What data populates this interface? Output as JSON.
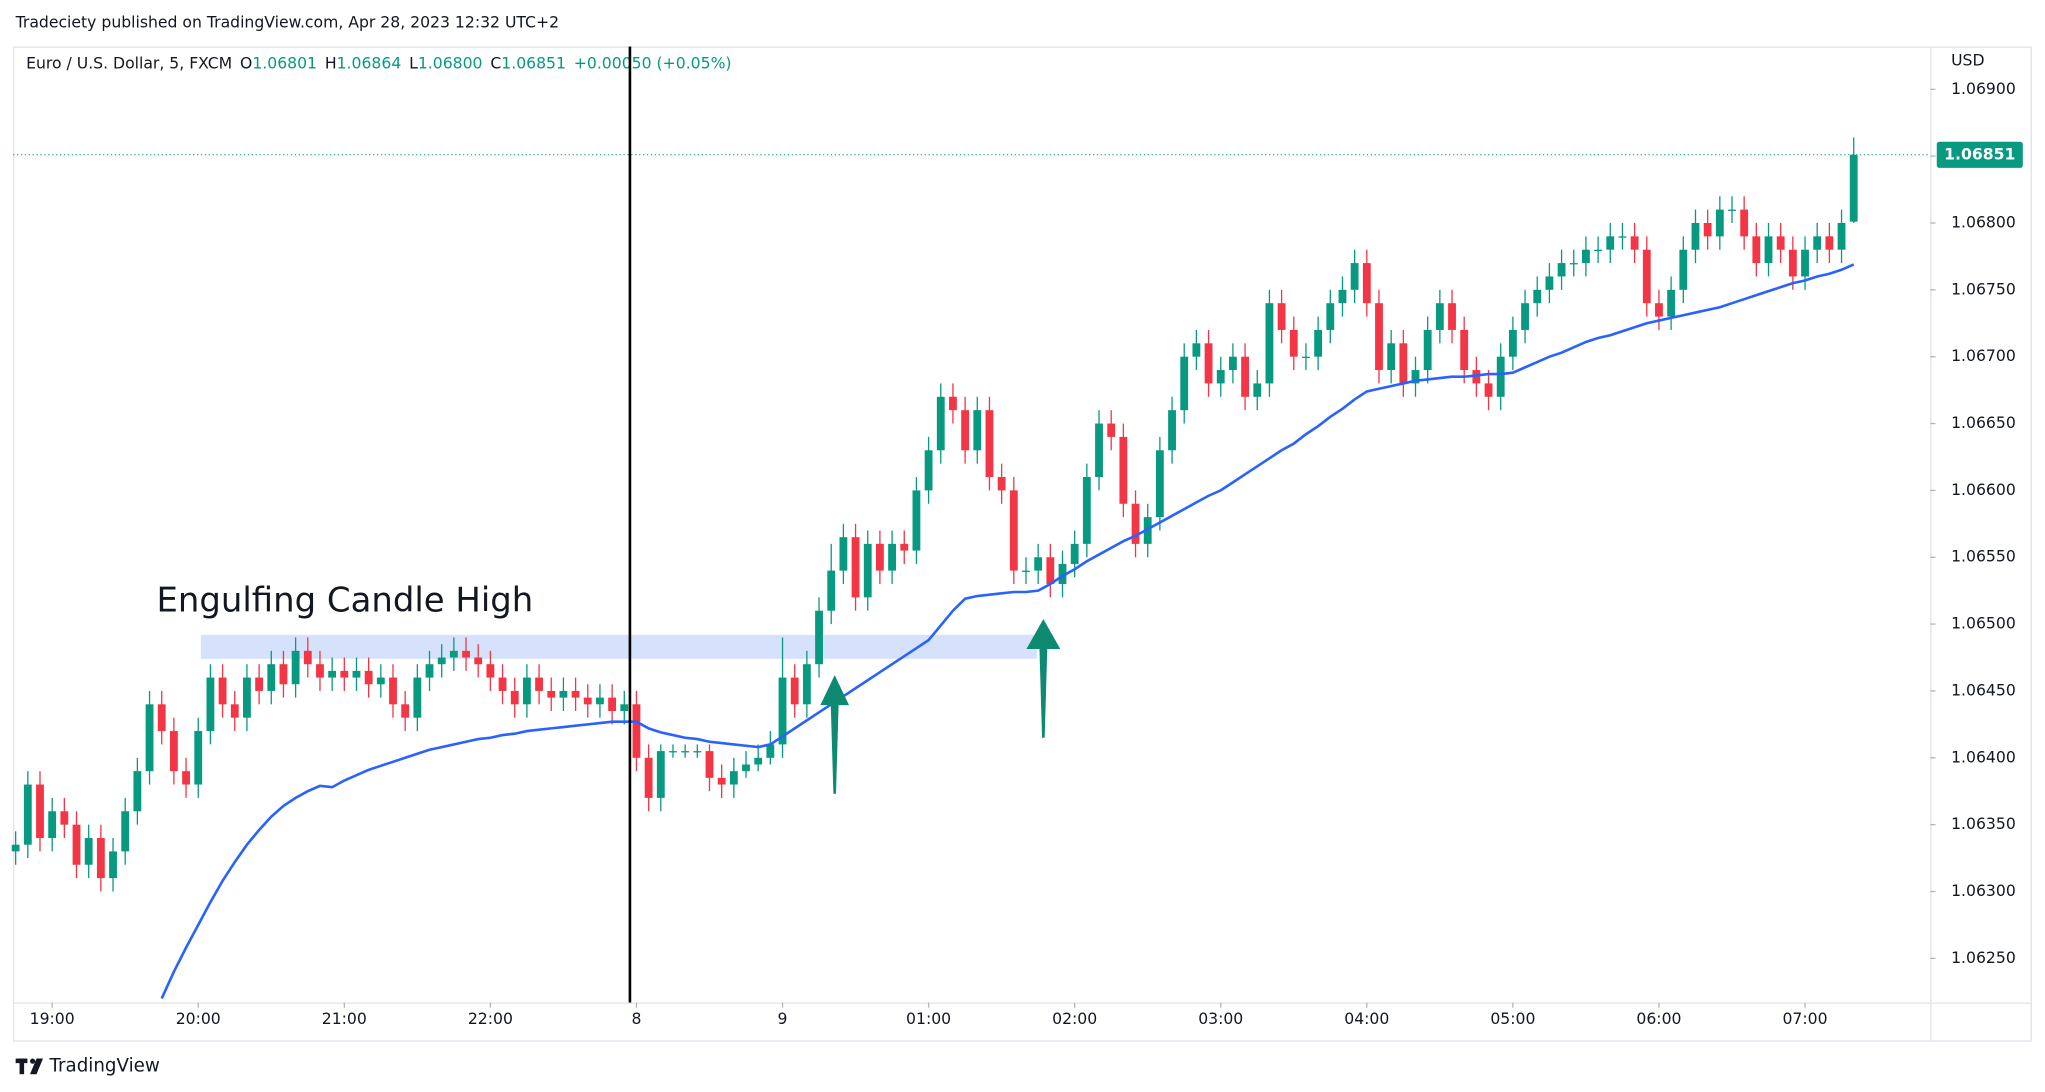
{
  "header": {
    "publisher": "Tradeciety published on TradingView.com, Apr 28, 2023 12:32 UTC+2",
    "symbol": "Euro / U.S. Dollar, 5, FXCM",
    "ohlc": [
      {
        "key": "O",
        "value": "1.06801"
      },
      {
        "key": "H",
        "value": "1.06864"
      },
      {
        "key": "L",
        "value": "1.06800"
      },
      {
        "key": "C",
        "value": "1.06851"
      }
    ],
    "change": "+0.00050 (+0.05%)"
  },
  "footer": {
    "brand": "TradingView"
  },
  "chart_data": {
    "type": "candlestick",
    "currency": "USD",
    "annotation": "Engulfing Candle High",
    "zone": [
      1.06474,
      1.06492
    ],
    "up_color": "#089981",
    "down_color": "#f23645",
    "ma_color": "#2962ff",
    "ylim": [
      1.06217,
      1.06932
    ],
    "yticks": [
      {
        "value": 1.0625,
        "label": "1.06250"
      },
      {
        "value": 1.063,
        "label": "1.06300"
      },
      {
        "value": 1.0635,
        "label": "1.06350"
      },
      {
        "value": 1.064,
        "label": "1.06400"
      },
      {
        "value": 1.0645,
        "label": "1.06450"
      },
      {
        "value": 1.065,
        "label": "1.06500"
      },
      {
        "value": 1.0655,
        "label": "1.06550"
      },
      {
        "value": 1.066,
        "label": "1.06600"
      },
      {
        "value": 1.0665,
        "label": "1.06650"
      },
      {
        "value": 1.067,
        "label": "1.06700"
      },
      {
        "value": 1.0675,
        "label": "1.06750"
      },
      {
        "value": 1.068,
        "label": "1.06800"
      },
      {
        "value": 1.0685,
        "label": "1.06850"
      },
      {
        "value": 1.069,
        "label": "1.06900"
      }
    ],
    "categories": [
      null,
      null,
      null,
      "19:00",
      null,
      null,
      null,
      null,
      null,
      null,
      null,
      null,
      null,
      null,
      null,
      "20:00",
      null,
      null,
      null,
      null,
      null,
      null,
      null,
      null,
      null,
      null,
      null,
      "21:00",
      null,
      null,
      null,
      null,
      null,
      null,
      null,
      null,
      null,
      null,
      null,
      "22:00",
      null,
      null,
      null,
      null,
      null,
      null,
      null,
      null,
      null,
      null,
      null,
      "8",
      null,
      null,
      null,
      null,
      null,
      null,
      null,
      null,
      null,
      null,
      null,
      "9",
      null,
      null,
      null,
      null,
      null,
      null,
      null,
      null,
      null,
      null,
      null,
      "01:00",
      null,
      null,
      null,
      null,
      null,
      null,
      null,
      null,
      null,
      null,
      null,
      "02:00",
      null,
      null,
      null,
      null,
      null,
      null,
      null,
      null,
      null,
      null,
      null,
      "03:00",
      null,
      null,
      null,
      null,
      null,
      null,
      null,
      null,
      null,
      null,
      null,
      "04:00",
      null,
      null,
      null,
      null,
      null,
      null,
      null,
      null,
      null,
      null,
      null,
      "05:00",
      null,
      null,
      null,
      null,
      null,
      null,
      null,
      null,
      null,
      null,
      null,
      "06:00",
      null,
      null,
      null,
      null,
      null,
      null,
      null,
      null,
      null,
      null,
      null,
      "07:00",
      null,
      null,
      null,
      null
    ],
    "candles": [
      [
        1.0633,
        1.06345,
        1.0632,
        1.06335
      ],
      [
        1.06335,
        1.0639,
        1.06325,
        1.0638
      ],
      [
        1.0638,
        1.0639,
        1.0633,
        1.0634
      ],
      [
        1.0634,
        1.0637,
        1.0633,
        1.0636
      ],
      [
        1.0636,
        1.0637,
        1.0634,
        1.0635
      ],
      [
        1.0635,
        1.0636,
        1.0631,
        1.0632
      ],
      [
        1.0632,
        1.0635,
        1.0631,
        1.0634
      ],
      [
        1.0634,
        1.0635,
        1.063,
        1.0631
      ],
      [
        1.0631,
        1.0634,
        1.063,
        1.0633
      ],
      [
        1.0633,
        1.0637,
        1.0632,
        1.0636
      ],
      [
        1.0636,
        1.064,
        1.0635,
        1.0639
      ],
      [
        1.0639,
        1.0645,
        1.0638,
        1.0644
      ],
      [
        1.0644,
        1.0645,
        1.0641,
        1.0642
      ],
      [
        1.0642,
        1.0643,
        1.0638,
        1.0639
      ],
      [
        1.0639,
        1.064,
        1.0637,
        1.0638
      ],
      [
        1.0638,
        1.0643,
        1.0637,
        1.0642
      ],
      [
        1.0642,
        1.0647,
        1.0641,
        1.0646
      ],
      [
        1.0646,
        1.0647,
        1.0643,
        1.0644
      ],
      [
        1.0644,
        1.0645,
        1.0642,
        1.0643
      ],
      [
        1.0643,
        1.0647,
        1.0642,
        1.0646
      ],
      [
        1.0646,
        1.0647,
        1.0644,
        1.0645
      ],
      [
        1.0645,
        1.0648,
        1.0644,
        1.0647
      ],
      [
        1.0647,
        1.0648,
        1.06445,
        1.06455
      ],
      [
        1.06455,
        1.0649,
        1.06445,
        1.0648
      ],
      [
        1.0648,
        1.0649,
        1.0646,
        1.0647
      ],
      [
        1.0647,
        1.0648,
        1.0645,
        1.0646
      ],
      [
        1.0646,
        1.06475,
        1.0645,
        1.06465
      ],
      [
        1.06465,
        1.06475,
        1.0645,
        1.0646
      ],
      [
        1.0646,
        1.06475,
        1.0645,
        1.06465
      ],
      [
        1.06465,
        1.06475,
        1.06445,
        1.06455
      ],
      [
        1.06455,
        1.0647,
        1.06445,
        1.0646
      ],
      [
        1.0646,
        1.0647,
        1.0643,
        1.0644
      ],
      [
        1.0644,
        1.0645,
        1.0642,
        1.0643
      ],
      [
        1.0643,
        1.0647,
        1.0642,
        1.0646
      ],
      [
        1.0646,
        1.0648,
        1.0645,
        1.0647
      ],
      [
        1.0647,
        1.06485,
        1.0646,
        1.06475
      ],
      [
        1.06475,
        1.0649,
        1.06465,
        1.0648
      ],
      [
        1.0648,
        1.0649,
        1.06465,
        1.06475
      ],
      [
        1.06475,
        1.06485,
        1.0646,
        1.0647
      ],
      [
        1.0647,
        1.0648,
        1.0645,
        1.0646
      ],
      [
        1.0646,
        1.0647,
        1.0644,
        1.0645
      ],
      [
        1.0645,
        1.0646,
        1.0643,
        1.0644
      ],
      [
        1.0644,
        1.0647,
        1.0643,
        1.0646
      ],
      [
        1.0646,
        1.0647,
        1.0644,
        1.0645
      ],
      [
        1.0645,
        1.0646,
        1.06435,
        1.06445
      ],
      [
        1.06445,
        1.0646,
        1.06435,
        1.0645
      ],
      [
        1.0645,
        1.0646,
        1.06435,
        1.06445
      ],
      [
        1.06445,
        1.06455,
        1.0643,
        1.0644
      ],
      [
        1.0644,
        1.06455,
        1.0643,
        1.06445
      ],
      [
        1.06445,
        1.06455,
        1.06425,
        1.06435
      ],
      [
        1.06435,
        1.0645,
        1.06425,
        1.0644
      ],
      [
        1.0644,
        1.0645,
        1.0639,
        1.064
      ],
      [
        1.064,
        1.0641,
        1.0636,
        1.0637
      ],
      [
        1.0637,
        1.0641,
        1.0636,
        1.06405
      ],
      [
        1.06405,
        1.0641,
        1.064,
        1.06405
      ],
      [
        1.06405,
        1.0641,
        1.064,
        1.06405
      ],
      [
        1.06405,
        1.0641,
        1.064,
        1.06405
      ],
      [
        1.06405,
        1.0641,
        1.06375,
        1.06385
      ],
      [
        1.06385,
        1.06395,
        1.0637,
        1.0638
      ],
      [
        1.0638,
        1.064,
        1.0637,
        1.0639
      ],
      [
        1.0639,
        1.06405,
        1.06385,
        1.06395
      ],
      [
        1.06395,
        1.0641,
        1.0639,
        1.064
      ],
      [
        1.064,
        1.0642,
        1.06395,
        1.0641
      ],
      [
        1.0641,
        1.0649,
        1.064,
        1.0646
      ],
      [
        1.0646,
        1.0647,
        1.0643,
        1.0644
      ],
      [
        1.0644,
        1.0648,
        1.0643,
        1.0647
      ],
      [
        1.0647,
        1.0652,
        1.0646,
        1.0651
      ],
      [
        1.0651,
        1.0656,
        1.065,
        1.0654
      ],
      [
        1.0654,
        1.06575,
        1.0653,
        1.06565
      ],
      [
        1.06565,
        1.06575,
        1.0651,
        1.0652
      ],
      [
        1.0652,
        1.0657,
        1.0651,
        1.0656
      ],
      [
        1.0656,
        1.0657,
        1.0653,
        1.0654
      ],
      [
        1.0654,
        1.0657,
        1.0653,
        1.0656
      ],
      [
        1.0656,
        1.0657,
        1.06545,
        1.06555
      ],
      [
        1.06555,
        1.0661,
        1.06545,
        1.066
      ],
      [
        1.066,
        1.0664,
        1.0659,
        1.0663
      ],
      [
        1.0663,
        1.0668,
        1.0662,
        1.0667
      ],
      [
        1.0667,
        1.0668,
        1.0665,
        1.0666
      ],
      [
        1.0666,
        1.0667,
        1.0662,
        1.0663
      ],
      [
        1.0663,
        1.0667,
        1.0662,
        1.0666
      ],
      [
        1.0666,
        1.0667,
        1.066,
        1.0661
      ],
      [
        1.0661,
        1.0662,
        1.0659,
        1.066
      ],
      [
        1.066,
        1.0661,
        1.0653,
        1.0654
      ],
      [
        1.0654,
        1.0655,
        1.0653,
        1.0654
      ],
      [
        1.0654,
        1.0656,
        1.0653,
        1.0655
      ],
      [
        1.0655,
        1.0656,
        1.0652,
        1.0653
      ],
      [
        1.0653,
        1.06555,
        1.0652,
        1.06545
      ],
      [
        1.06545,
        1.0657,
        1.06535,
        1.0656
      ],
      [
        1.0656,
        1.0662,
        1.0655,
        1.0661
      ],
      [
        1.0661,
        1.0666,
        1.066,
        1.0665
      ],
      [
        1.0665,
        1.0666,
        1.0663,
        1.0664
      ],
      [
        1.0664,
        1.0665,
        1.0658,
        1.0659
      ],
      [
        1.0659,
        1.066,
        1.0655,
        1.0656
      ],
      [
        1.0656,
        1.0659,
        1.0655,
        1.0658
      ],
      [
        1.0658,
        1.0664,
        1.0657,
        1.0663
      ],
      [
        1.0663,
        1.0667,
        1.0662,
        1.0666
      ],
      [
        1.0666,
        1.0671,
        1.0665,
        1.067
      ],
      [
        1.067,
        1.0672,
        1.0669,
        1.0671
      ],
      [
        1.0671,
        1.0672,
        1.0667,
        1.0668
      ],
      [
        1.0668,
        1.067,
        1.0667,
        1.0669
      ],
      [
        1.0669,
        1.0671,
        1.0668,
        1.067
      ],
      [
        1.067,
        1.0671,
        1.0666,
        1.0667
      ],
      [
        1.0667,
        1.0669,
        1.0666,
        1.0668
      ],
      [
        1.0668,
        1.0675,
        1.0667,
        1.0674
      ],
      [
        1.0674,
        1.0675,
        1.0671,
        1.0672
      ],
      [
        1.0672,
        1.0673,
        1.0669,
        1.067
      ],
      [
        1.067,
        1.0671,
        1.0669,
        1.067
      ],
      [
        1.067,
        1.0673,
        1.0669,
        1.0672
      ],
      [
        1.0672,
        1.0675,
        1.0671,
        1.0674
      ],
      [
        1.0674,
        1.0676,
        1.0673,
        1.0675
      ],
      [
        1.0675,
        1.0678,
        1.0674,
        1.0677
      ],
      [
        1.0677,
        1.0678,
        1.0673,
        1.0674
      ],
      [
        1.0674,
        1.0675,
        1.0668,
        1.0669
      ],
      [
        1.0669,
        1.0672,
        1.0668,
        1.0671
      ],
      [
        1.0671,
        1.0672,
        1.0667,
        1.0668
      ],
      [
        1.0668,
        1.067,
        1.0667,
        1.0669
      ],
      [
        1.0669,
        1.0673,
        1.0668,
        1.0672
      ],
      [
        1.0672,
        1.0675,
        1.0671,
        1.0674
      ],
      [
        1.0674,
        1.0675,
        1.0671,
        1.0672
      ],
      [
        1.0672,
        1.0673,
        1.0668,
        1.0669
      ],
      [
        1.0669,
        1.067,
        1.0667,
        1.0668
      ],
      [
        1.0668,
        1.0669,
        1.0666,
        1.0667
      ],
      [
        1.0667,
        1.0671,
        1.0666,
        1.067
      ],
      [
        1.067,
        1.0673,
        1.0669,
        1.0672
      ],
      [
        1.0672,
        1.0675,
        1.0671,
        1.0674
      ],
      [
        1.0674,
        1.0676,
        1.0673,
        1.0675
      ],
      [
        1.0675,
        1.0677,
        1.0674,
        1.0676
      ],
      [
        1.0676,
        1.0678,
        1.0675,
        1.0677
      ],
      [
        1.0677,
        1.0678,
        1.0676,
        1.0677
      ],
      [
        1.0677,
        1.0679,
        1.0676,
        1.0678
      ],
      [
        1.0678,
        1.0679,
        1.0677,
        1.0678
      ],
      [
        1.0678,
        1.068,
        1.0677,
        1.0679
      ],
      [
        1.0679,
        1.068,
        1.0678,
        1.0679
      ],
      [
        1.0679,
        1.068,
        1.0677,
        1.0678
      ],
      [
        1.0678,
        1.0679,
        1.0673,
        1.0674
      ],
      [
        1.0674,
        1.0675,
        1.0672,
        1.0673
      ],
      [
        1.0673,
        1.0676,
        1.0672,
        1.0675
      ],
      [
        1.0675,
        1.0679,
        1.0674,
        1.0678
      ],
      [
        1.0678,
        1.0681,
        1.0677,
        1.068
      ],
      [
        1.068,
        1.0681,
        1.0678,
        1.0679
      ],
      [
        1.0679,
        1.0682,
        1.0678,
        1.0681
      ],
      [
        1.0681,
        1.0682,
        1.068,
        1.0681
      ],
      [
        1.0681,
        1.0682,
        1.0678,
        1.0679
      ],
      [
        1.0679,
        1.068,
        1.0676,
        1.0677
      ],
      [
        1.0677,
        1.068,
        1.0676,
        1.0679
      ],
      [
        1.0679,
        1.068,
        1.0677,
        1.0678
      ],
      [
        1.0678,
        1.0679,
        1.0675,
        1.0676
      ],
      [
        1.0676,
        1.0679,
        1.0675,
        1.0678
      ],
      [
        1.0678,
        1.068,
        1.0677,
        1.0679
      ],
      [
        1.0679,
        1.068,
        1.0677,
        1.0678
      ],
      [
        1.0678,
        1.0681,
        1.0677,
        1.068
      ],
      [
        1.06801,
        1.06864,
        1.068,
        1.06851
      ]
    ],
    "ma_values": [
      null,
      null,
      null,
      null,
      null,
      null,
      null,
      null,
      null,
      null,
      null,
      null,
      1.0622,
      1.0624,
      1.06258,
      1.06275,
      1.06292,
      1.06308,
      1.06322,
      1.06335,
      1.06346,
      1.06356,
      1.06364,
      1.0637,
      1.06375,
      1.06379,
      1.06378,
      1.06383,
      1.06387,
      1.06391,
      1.06394,
      1.06397,
      1.064,
      1.06403,
      1.06406,
      1.06408,
      1.0641,
      1.06412,
      1.06414,
      1.06415,
      1.06417,
      1.06418,
      1.0642,
      1.06421,
      1.06422,
      1.06423,
      1.06424,
      1.06425,
      1.06426,
      1.06427,
      1.06427,
      1.06427,
      1.06422,
      1.06419,
      1.06417,
      1.06415,
      1.06414,
      1.06412,
      1.06411,
      1.0641,
      1.06409,
      1.06408,
      1.0641,
      1.06416,
      1.06422,
      1.06428,
      1.06434,
      1.0644,
      1.06446,
      1.06452,
      1.06458,
      1.06464,
      1.0647,
      1.06476,
      1.06482,
      1.06488,
      1.06499,
      1.0651,
      1.06519,
      1.06521,
      1.06522,
      1.06523,
      1.06524,
      1.06524,
      1.06525,
      1.0653,
      1.06536,
      1.06541,
      1.06547,
      1.06552,
      1.06557,
      1.06562,
      1.06566,
      1.06571,
      1.06576,
      1.06581,
      1.06586,
      1.06591,
      1.06596,
      1.066,
      1.06606,
      1.06612,
      1.06618,
      1.06624,
      1.0663,
      1.06635,
      1.06642,
      1.06648,
      1.06655,
      1.06661,
      1.06668,
      1.06674,
      1.06676,
      1.06678,
      1.0668,
      1.06682,
      1.06683,
      1.06684,
      1.06685,
      1.06685,
      1.06686,
      1.06687,
      1.06687,
      1.06688,
      1.06692,
      1.06696,
      1.067,
      1.06703,
      1.06707,
      1.06711,
      1.06714,
      1.06716,
      1.06719,
      1.06722,
      1.06725,
      1.06727,
      1.06729,
      1.06731,
      1.06733,
      1.06735,
      1.06737,
      1.0674,
      1.06743,
      1.06746,
      1.06749,
      1.06752,
      1.06755,
      1.06757,
      1.0676,
      1.06762,
      1.06765,
      1.06769
    ]
  }
}
